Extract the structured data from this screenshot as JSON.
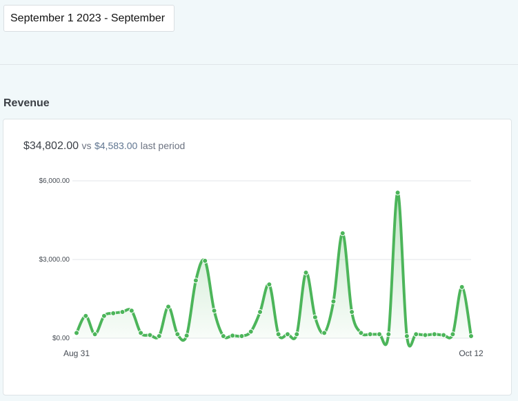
{
  "date_range": {
    "value": "September 1 2023 - September"
  },
  "section": {
    "title": "Revenue"
  },
  "summary": {
    "total": "$34,802.00",
    "vs_word": "vs",
    "previous": "$4,583.00",
    "last_period": "last period"
  },
  "colors": {
    "line": "#4cb55a",
    "fill": "#4cb55a",
    "grid": "#e3e6e8"
  },
  "chart_data": {
    "type": "area",
    "title": "",
    "xlabel": "",
    "ylabel": "",
    "ylim": [
      0,
      6000
    ],
    "y_ticks": [
      {
        "value": 0,
        "label": "$0.00"
      },
      {
        "value": 3000,
        "label": "$3,000.00"
      },
      {
        "value": 6000,
        "label": "$6,000.00"
      }
    ],
    "x_tick_labels": {
      "first": "Aug 31",
      "last": "Oct 12"
    },
    "grid": true,
    "legend": "none",
    "series": [
      {
        "values": [
          200,
          850,
          150,
          850,
          950,
          1000,
          1050,
          200,
          120,
          80,
          1200,
          150,
          100,
          2200,
          2950,
          1050,
          80,
          100,
          80,
          250,
          1000,
          2050,
          150,
          150,
          150,
          2500,
          800,
          200,
          1400,
          4000,
          1000,
          200,
          150,
          150,
          150,
          5550,
          80,
          150,
          120,
          150,
          120,
          150,
          1950,
          80
        ]
      }
    ]
  }
}
